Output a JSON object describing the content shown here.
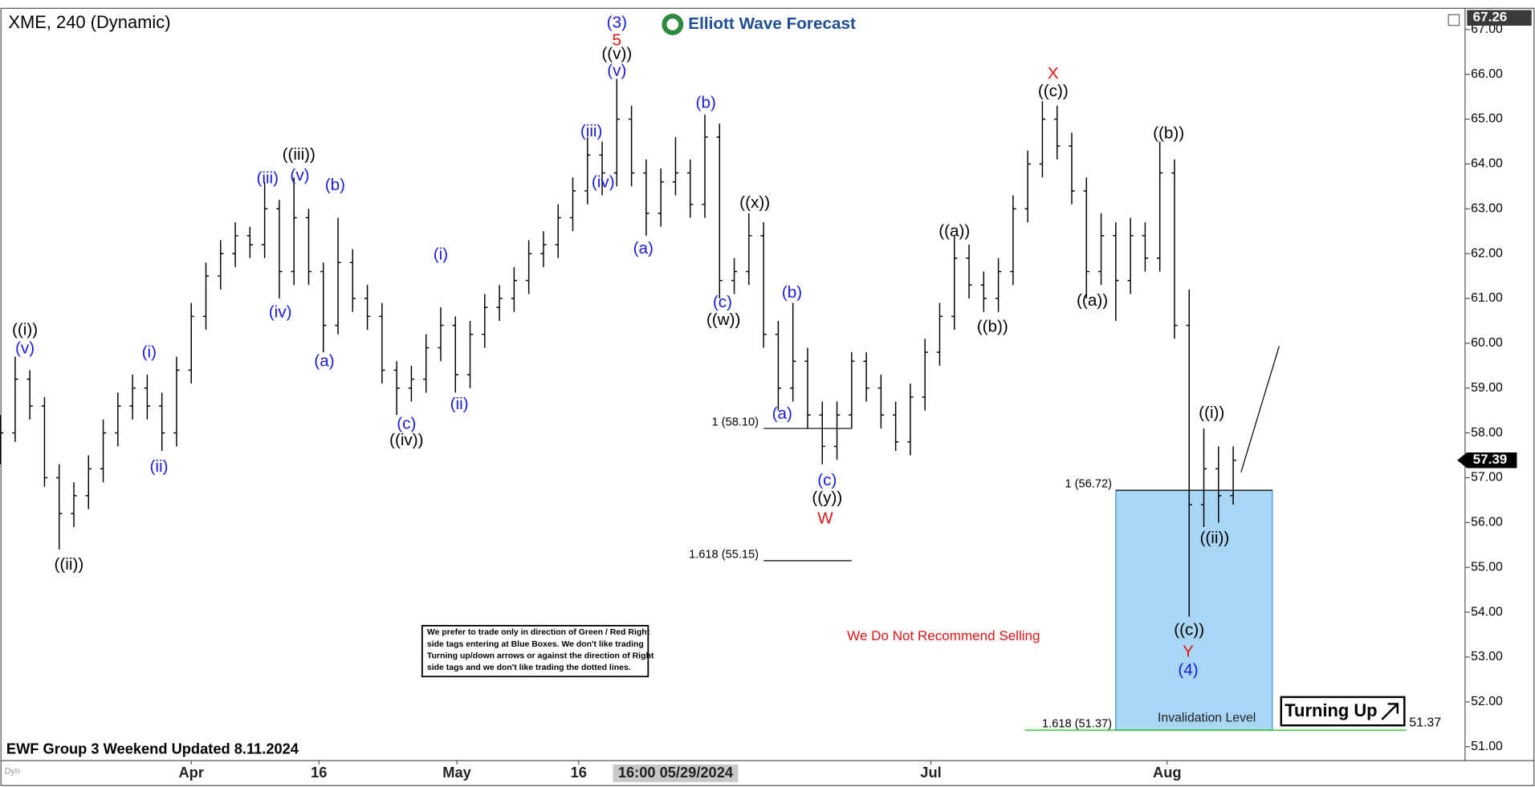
{
  "chart_data": {
    "type": "ohlc",
    "title": "XME, 240 (Dynamic)",
    "color": "#000000",
    "x": [
      0,
      1,
      2,
      3,
      4,
      5,
      6,
      7,
      8,
      9,
      10,
      11,
      12,
      13,
      14,
      15,
      16,
      17,
      18,
      19,
      20,
      21,
      22,
      23,
      24,
      25,
      26,
      27,
      28,
      29,
      30,
      31,
      32,
      33,
      34,
      35,
      36,
      37,
      38,
      39,
      40,
      41,
      42,
      43,
      44,
      45,
      46,
      47,
      48,
      49,
      50,
      51,
      52,
      53,
      54,
      55,
      56,
      57,
      58,
      59,
      60,
      61,
      62,
      63,
      64,
      65,
      66,
      67,
      68,
      69,
      70,
      71,
      72,
      73,
      74,
      75,
      76,
      77,
      78,
      79,
      80,
      81,
      82,
      83,
      84
    ],
    "open": [
      57.6,
      58.0,
      59.2,
      58.6,
      57.0,
      56.2,
      56.6,
      57.2,
      58.0,
      58.6,
      59.0,
      58.6,
      58.0,
      59.4,
      60.6,
      61.5,
      62.0,
      62.4,
      62.2,
      63.0,
      61.6,
      62.8,
      61.6,
      60.4,
      61.8,
      61.0,
      60.6,
      59.4,
      59.0,
      59.2,
      59.9,
      60.4,
      59.3,
      60.2,
      60.8,
      61.0,
      61.4,
      62.0,
      62.2,
      62.8,
      63.4,
      64.2,
      63.8,
      65.0,
      63.8,
      62.9,
      63.6,
      63.8,
      63.1,
      64.6,
      61.4,
      61.6,
      62.4,
      60.2,
      59.0,
      59.6,
      58.4,
      57.7,
      58.4,
      59.6,
      59.0,
      58.4,
      57.8,
      58.8,
      59.8,
      60.6,
      61.9,
      61.3,
      61.0,
      61.6,
      63.0,
      64.0,
      65.0,
      64.4,
      63.4,
      61.6,
      62.4,
      61.4,
      62.4,
      61.9,
      63.8,
      60.4,
      56.4,
      57.2,
      56.6
    ],
    "high": [
      58.4,
      59.7,
      59.4,
      58.8,
      57.3,
      56.9,
      57.5,
      58.3,
      58.9,
      59.3,
      59.3,
      58.9,
      59.7,
      60.9,
      61.8,
      62.3,
      62.7,
      62.6,
      63.6,
      63.2,
      63.7,
      63.0,
      61.8,
      62.8,
      62.1,
      61.3,
      60.9,
      59.6,
      59.5,
      60.2,
      60.8,
      60.6,
      60.5,
      61.1,
      61.3,
      61.7,
      62.3,
      62.5,
      63.1,
      63.7,
      64.6,
      64.5,
      65.9,
      65.3,
      64.1,
      63.9,
      64.6,
      64.1,
      65.1,
      64.9,
      61.9,
      62.9,
      62.7,
      60.5,
      60.9,
      59.9,
      58.7,
      58.7,
      59.8,
      59.8,
      59.3,
      58.7,
      59.1,
      60.1,
      60.9,
      62.4,
      62.2,
      61.6,
      61.9,
      63.3,
      64.3,
      65.4,
      65.3,
      64.7,
      63.7,
      62.9,
      62.7,
      62.8,
      62.7,
      64.5,
      64.1,
      61.2,
      58.1,
      57.7,
      57.7
    ],
    "low": [
      57.3,
      57.8,
      58.3,
      56.8,
      55.4,
      55.9,
      56.3,
      56.9,
      57.7,
      58.3,
      58.3,
      57.6,
      57.7,
      59.1,
      60.3,
      61.2,
      61.7,
      61.9,
      61.9,
      61.0,
      61.3,
      61.3,
      59.8,
      60.2,
      60.7,
      60.3,
      59.1,
      58.4,
      58.7,
      58.9,
      59.6,
      58.9,
      59.0,
      59.9,
      60.5,
      60.7,
      61.1,
      61.7,
      61.9,
      62.5,
      63.1,
      63.3,
      63.5,
      63.5,
      62.4,
      62.6,
      63.3,
      62.8,
      62.8,
      61.0,
      61.1,
      61.3,
      59.9,
      58.5,
      58.7,
      58.1,
      57.3,
      57.4,
      58.1,
      58.7,
      58.1,
      57.6,
      57.5,
      58.5,
      59.5,
      60.3,
      61.0,
      60.7,
      60.7,
      61.3,
      62.7,
      63.7,
      64.1,
      63.1,
      61.0,
      61.3,
      60.5,
      61.1,
      61.6,
      61.6,
      60.1,
      53.9,
      55.9,
      56.0,
      56.4
    ],
    "close": [
      58.0,
      59.2,
      58.6,
      57.0,
      56.2,
      56.6,
      57.2,
      58.0,
      58.6,
      59.0,
      58.6,
      58.0,
      59.4,
      60.6,
      61.5,
      62.0,
      62.4,
      62.2,
      63.0,
      61.6,
      62.8,
      61.6,
      60.4,
      61.8,
      61.0,
      60.6,
      59.4,
      59.0,
      59.2,
      59.9,
      60.4,
      59.3,
      60.2,
      60.8,
      61.0,
      61.4,
      62.0,
      62.2,
      62.8,
      63.4,
      64.2,
      63.8,
      65.0,
      63.8,
      62.9,
      63.6,
      63.8,
      63.1,
      64.6,
      61.4,
      61.6,
      62.4,
      60.2,
      59.0,
      59.6,
      58.4,
      57.7,
      58.4,
      59.6,
      59.0,
      58.4,
      57.8,
      58.8,
      59.8,
      60.6,
      61.9,
      61.3,
      61.0,
      61.6,
      63.0,
      64.0,
      65.0,
      64.4,
      63.4,
      61.6,
      62.4,
      61.4,
      62.4,
      61.9,
      63.8,
      60.4,
      56.4,
      57.2,
      56.6,
      57.39
    ],
    "xlim": [
      0,
      99.8
    ],
    "xticks": [
      {
        "value": 13,
        "label": "Apr"
      },
      {
        "value": 21.7,
        "label": "16"
      },
      {
        "value": 31.1,
        "label": "May"
      },
      {
        "value": 39.4,
        "label": "16"
      },
      {
        "value": 63.4,
        "label": "Jul"
      },
      {
        "value": 79.5,
        "label": "Aug"
      }
    ],
    "ylim": [
      50.69,
      67.44
    ],
    "yticks": [
      {
        "value": 51,
        "label": "51.00"
      },
      {
        "value": 52,
        "label": "52.00"
      },
      {
        "value": 53,
        "label": "53.00"
      },
      {
        "value": 54,
        "label": "54.00"
      },
      {
        "value": 55,
        "label": "55.00"
      },
      {
        "value": 56,
        "label": "56.00"
      },
      {
        "value": 57,
        "label": "57.00"
      },
      {
        "value": 58,
        "label": "58.00"
      },
      {
        "value": 59,
        "label": "59.00"
      },
      {
        "value": 60,
        "label": "60.00"
      },
      {
        "value": 61,
        "label": "61.00"
      },
      {
        "value": 62,
        "label": "62.00"
      },
      {
        "value": 63,
        "label": "63.00"
      },
      {
        "value": 64,
        "label": "64.00"
      },
      {
        "value": 65,
        "label": "65.00"
      },
      {
        "value": 66,
        "label": "66.00"
      },
      {
        "value": 67,
        "label": "67.00"
      }
    ],
    "annotations": [
      {
        "text": "((i))",
        "color": "#000000"
      },
      {
        "text": "(v)",
        "color": "#1a1adc"
      },
      {
        "text": "((ii))",
        "color": "#000000"
      },
      {
        "text": "(i)",
        "color": "#1a1adc"
      },
      {
        "text": "(ii)",
        "color": "#1a1adc"
      },
      {
        "text": "(iii)",
        "color": "#1a1adc"
      },
      {
        "text": "(iv)",
        "color": "#1a1adc"
      },
      {
        "text": "((iii))",
        "color": "#000000"
      },
      {
        "text": "(v)",
        "color": "#1a1adc"
      },
      {
        "text": "(b)",
        "color": "#1a1adc"
      },
      {
        "text": "(a)",
        "color": "#1a1adc"
      },
      {
        "text": "(c)",
        "color": "#1a1adc"
      },
      {
        "text": "((iv))",
        "color": "#000000"
      },
      {
        "text": "(i)",
        "color": "#1a1adc"
      },
      {
        "text": "(ii)",
        "color": "#1a1adc"
      },
      {
        "text": "(iii)",
        "color": "#1a1adc"
      },
      {
        "text": "(iv)",
        "color": "#1a1adc"
      },
      {
        "text": "(3)",
        "color": "#1a1adc"
      },
      {
        "text": "5",
        "color": "#e01414"
      },
      {
        "text": "((v))",
        "color": "#000000"
      },
      {
        "text": "(v)",
        "color": "#1a1adc"
      },
      {
        "text": "(a)",
        "color": "#1a1adc"
      },
      {
        "text": "(b)",
        "color": "#1a1adc"
      },
      {
        "text": "((x))",
        "color": "#000000"
      },
      {
        "text": "(c)",
        "color": "#1a1adc"
      },
      {
        "text": "((w))",
        "color": "#000000"
      },
      {
        "text": "(b)",
        "color": "#1a1adc"
      },
      {
        "text": "(a)",
        "color": "#1a1adc"
      },
      {
        "text": "(c)",
        "color": "#1a1adc"
      },
      {
        "text": "((y))",
        "color": "#000000"
      },
      {
        "text": "W",
        "color": "#e01414"
      },
      {
        "text": "((a))",
        "color": "#000000"
      },
      {
        "text": "((b))",
        "color": "#000000"
      },
      {
        "text": "X",
        "color": "#e01414"
      },
      {
        "text": "((c))",
        "color": "#000000"
      },
      {
        "text": "((a))",
        "color": "#000000"
      },
      {
        "text": "((b))",
        "color": "#000000"
      },
      {
        "text": "((i))",
        "color": "#000000"
      },
      {
        "text": "((ii))",
        "color": "#000000"
      },
      {
        "text": "((c))",
        "color": "#000000"
      },
      {
        "text": "Y",
        "color": "#e01414"
      },
      {
        "text": "(4)",
        "color": "#1a1adc"
      }
    ],
    "levels": [
      {
        "value": 58.1,
        "label": "1 (58.10)",
        "color": "#000000"
      },
      {
        "value": 55.15,
        "label": "1.618 (55.15)",
        "color": "#000000"
      },
      {
        "value": 56.72,
        "label": "1 (56.72)",
        "color": "#000000"
      },
      {
        "value": 51.37,
        "label": "1.618 (51.37)",
        "right_label": "51.37",
        "color": "#00cc00"
      }
    ],
    "box_color": "#a9d6f5",
    "last_price": {
      "value": 57.39,
      "label": "57.39"
    },
    "high_price": {
      "value": 67.26,
      "label": "67.26"
    },
    "crosshair_time": "16:00 05/29/2024"
  },
  "header": {
    "brand": "Elliott Wave Forecast"
  },
  "footer": {
    "update": "EWF Group 3 Weekend Updated 8.11.2024",
    "source": "Dyn"
  },
  "notes": {
    "disclaimer": [
      "We prefer to trade only in direction of Green / Red Right",
      "side tags entering at Blue Boxes. We don't like trading",
      "Turning up/down arrows or against the direction of Right",
      "side tags and we don't like trading the dotted lines."
    ],
    "warning": "We Do Not Recommend Selling",
    "invalidation": "Invalidation Level",
    "signal": "Turning Up"
  }
}
